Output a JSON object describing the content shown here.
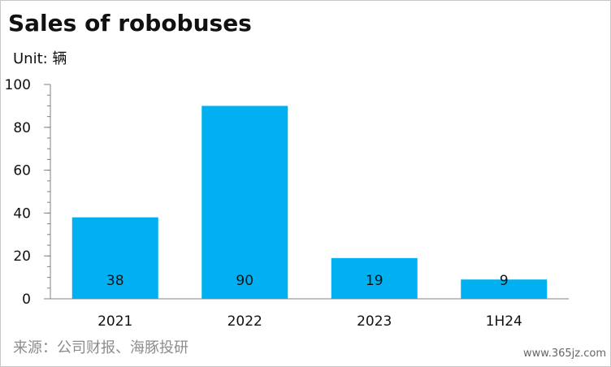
{
  "title": "Sales of robobuses",
  "unit_label": "Unit: 辆",
  "source": "来源：公司财报、海豚投研",
  "site": "www.365jz.com",
  "colors": {
    "bar": "#00b0f0",
    "axis": "#808080",
    "text": "#111111"
  },
  "chart_data": {
    "type": "bar",
    "title": "Sales of robobuses",
    "categories": [
      "2021",
      "2022",
      "2023",
      "1H24"
    ],
    "values": [
      38,
      90,
      19,
      9
    ],
    "data_labels": [
      "38",
      "90",
      "19",
      "9"
    ],
    "xlabel": "",
    "ylabel": "",
    "ylim": [
      0,
      100
    ],
    "yticks": [
      0,
      20,
      40,
      60,
      80,
      100
    ],
    "grid": false,
    "legend": "none"
  }
}
